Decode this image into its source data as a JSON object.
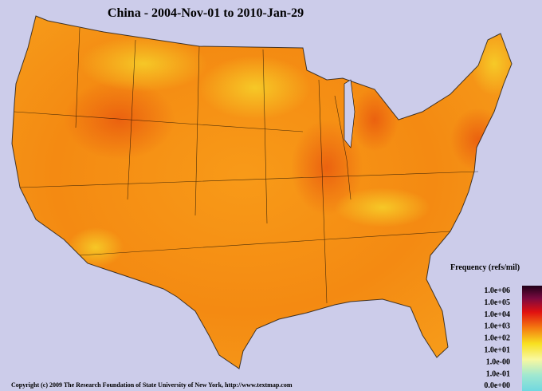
{
  "header": {
    "title": "China - 2004-Nov-01 to 2010-Jan-29"
  },
  "legend": {
    "title": "Frequency (refs/mil)",
    "labels": [
      "1.0e+06",
      "1.0e+05",
      "1.0e+04",
      "1.0e+03",
      "1.0e+02",
      "1.0e+01",
      "1.0e-00",
      "1.0e-01",
      "0.0e+00"
    ]
  },
  "footer": {
    "copyright": "Copyright (c) 2009 The Research Foundation of State University of New York, http://www.textmap.com"
  }
}
